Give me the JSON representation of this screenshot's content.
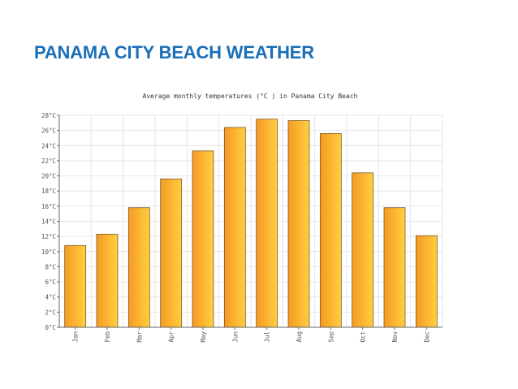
{
  "slide": {
    "title": "PANAMA CITY BEACH WEATHER"
  },
  "colors": {
    "title": "#1a6fb8",
    "bar_light": "#ffcf40",
    "bar_dark": "#f59a23",
    "bar_stroke": "#7a5a2a",
    "grid": "#e6e6e6",
    "axis": "#666666"
  },
  "chart_data": {
    "type": "bar",
    "title": "Average monthly temperatures (°C ) in Panama City Beach",
    "xlabel": "",
    "ylabel": "",
    "categories": [
      "Jan",
      "Feb",
      "Mar",
      "Apr",
      "May",
      "Jun",
      "Jul",
      "Aug",
      "Sep",
      "Oct",
      "Nov",
      "Dec"
    ],
    "values": [
      10.8,
      12.3,
      15.8,
      19.6,
      23.3,
      26.4,
      27.5,
      27.3,
      25.6,
      20.4,
      15.8,
      12.1
    ],
    "ylim": [
      0,
      28
    ],
    "ytick_step": 2,
    "ytick_labels": [
      "0°C",
      "2°C",
      "4°C",
      "6°C",
      "8°C",
      "10°C",
      "12°C",
      "14°C",
      "16°C",
      "18°C",
      "20°C",
      "22°C",
      "24°C",
      "26°C",
      "28°C"
    ],
    "grid": true,
    "legend": "none"
  }
}
